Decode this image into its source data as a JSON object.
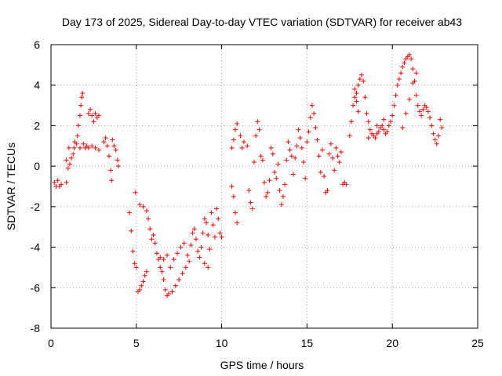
{
  "chart_data": {
    "type": "scatter",
    "title": "Day 173 of 2025, Sidereal Day-to-day VTEC variation (SDTVAR) for receiver ab43",
    "xlabel": "GPS time / hours",
    "ylabel": "SDTVAR / TECUs",
    "xlim": [
      0,
      25
    ],
    "ylim": [
      -8,
      6
    ],
    "xticks": [
      "0",
      "5",
      "10",
      "15",
      "20",
      "25"
    ],
    "yticks": [
      "-8",
      "-6",
      "-4",
      "-2",
      "0",
      "2",
      "4",
      "6"
    ],
    "grid": true,
    "marker": "+",
    "color": "#ff0000",
    "series": [
      {
        "name": "SDTVAR",
        "points": [
          [
            0.2,
            -0.8
          ],
          [
            0.3,
            -1.0
          ],
          [
            0.4,
            -0.7
          ],
          [
            0.5,
            -1.0
          ],
          [
            0.6,
            -0.9
          ],
          [
            0.9,
            -0.8
          ],
          [
            0.9,
            0.3
          ],
          [
            1.0,
            -0.1
          ],
          [
            1.05,
            0.9
          ],
          [
            1.1,
            0.1
          ],
          [
            1.2,
            0.4
          ],
          [
            1.3,
            0.6
          ],
          [
            1.35,
            0.9
          ],
          [
            1.4,
            1.2
          ],
          [
            1.5,
            1.1
          ],
          [
            1.55,
            1.5
          ],
          [
            1.6,
            2.0
          ],
          [
            1.7,
            2.5
          ],
          [
            1.75,
            3.0
          ],
          [
            1.8,
            3.4
          ],
          [
            1.85,
            3.6
          ],
          [
            1.7,
            0.9
          ],
          [
            1.9,
            1.1
          ],
          [
            2.0,
            0.9
          ],
          [
            2.1,
            1.0
          ],
          [
            2.2,
            0.9
          ],
          [
            2.2,
            2.6
          ],
          [
            2.3,
            2.8
          ],
          [
            2.4,
            2.5
          ],
          [
            2.5,
            2.2
          ],
          [
            2.6,
            2.6
          ],
          [
            2.7,
            2.4
          ],
          [
            2.8,
            2.5
          ],
          [
            2.4,
            1.0
          ],
          [
            2.6,
            0.9
          ],
          [
            2.8,
            0.8
          ],
          [
            3.1,
            1.2
          ],
          [
            3.2,
            1.4
          ],
          [
            3.3,
            1.0
          ],
          [
            3.4,
            0.5
          ],
          [
            3.5,
            -0.2
          ],
          [
            3.55,
            -0.7
          ],
          [
            3.6,
            1.3
          ],
          [
            3.7,
            1.0
          ],
          [
            3.8,
            0.8
          ],
          [
            3.9,
            0.3
          ],
          [
            3.95,
            0.0
          ],
          [
            4.6,
            -2.3
          ],
          [
            4.7,
            -3.2
          ],
          [
            4.8,
            -4.2
          ],
          [
            4.9,
            -4.8
          ],
          [
            5.0,
            -5.0
          ],
          [
            4.95,
            -1.3
          ],
          [
            5.1,
            -6.2
          ],
          [
            5.2,
            -6.1
          ],
          [
            5.3,
            -5.9
          ],
          [
            5.4,
            -5.7
          ],
          [
            5.5,
            -5.4
          ],
          [
            5.6,
            -5.2
          ],
          [
            5.2,
            -1.9
          ],
          [
            5.4,
            -2.0
          ],
          [
            5.6,
            -2.2
          ],
          [
            5.7,
            -2.6
          ],
          [
            5.8,
            -3.1
          ],
          [
            5.9,
            -3.6
          ],
          [
            6.0,
            -3.4
          ],
          [
            6.1,
            -3.8
          ],
          [
            6.2,
            -4.3
          ],
          [
            6.3,
            -4.6
          ],
          [
            6.4,
            -5.0
          ],
          [
            6.5,
            -5.2
          ],
          [
            6.6,
            -5.6
          ],
          [
            6.7,
            -6.1
          ],
          [
            6.8,
            -6.4
          ],
          [
            6.9,
            -6.3
          ],
          [
            6.4,
            -4.5
          ],
          [
            6.6,
            -4.6
          ],
          [
            6.8,
            -4.4
          ],
          [
            7.0,
            -5.0
          ],
          [
            7.2,
            -4.6
          ],
          [
            7.4,
            -4.3
          ],
          [
            7.6,
            -4.0
          ],
          [
            7.8,
            -3.8
          ],
          [
            7.1,
            -6.2
          ],
          [
            7.3,
            -5.9
          ],
          [
            7.5,
            -5.6
          ],
          [
            7.7,
            -5.3
          ],
          [
            7.9,
            -5.0
          ],
          [
            8.1,
            -4.7
          ],
          [
            8.0,
            -4.4
          ],
          [
            8.2,
            -3.9
          ],
          [
            8.3,
            -3.3
          ],
          [
            8.4,
            -3.1
          ],
          [
            8.5,
            -3.6
          ],
          [
            8.6,
            -4.2
          ],
          [
            8.7,
            -4.5
          ],
          [
            8.8,
            -4.0
          ],
          [
            8.9,
            -3.3
          ],
          [
            9.0,
            -2.6
          ],
          [
            9.1,
            -2.8
          ],
          [
            9.2,
            -3.4
          ],
          [
            9.3,
            -4.1
          ],
          [
            9.4,
            -2.3
          ],
          [
            9.5,
            -2.9
          ],
          [
            9.6,
            -3.5
          ],
          [
            9.7,
            -2.1
          ],
          [
            9.8,
            -2.6
          ],
          [
            9.9,
            -3.3
          ],
          [
            10.0,
            -3.5
          ],
          [
            9.2,
            -5.0
          ],
          [
            9.0,
            -4.8
          ],
          [
            10.6,
            -1.0
          ],
          [
            10.7,
            -1.5
          ],
          [
            10.8,
            -2.3
          ],
          [
            10.9,
            -2.8
          ],
          [
            10.6,
            0.9
          ],
          [
            10.7,
            1.3
          ],
          [
            10.8,
            1.8
          ],
          [
            10.9,
            2.1
          ],
          [
            11.1,
            1.5
          ],
          [
            11.2,
            0.9
          ],
          [
            11.3,
            1.2
          ],
          [
            11.5,
            1.0
          ],
          [
            11.6,
            -1.2
          ],
          [
            11.7,
            -1.8
          ],
          [
            11.8,
            -2.1
          ],
          [
            11.9,
            0.2
          ],
          [
            12.0,
            1.5
          ],
          [
            12.1,
            2.2
          ],
          [
            12.2,
            1.8
          ],
          [
            12.3,
            0.5
          ],
          [
            12.4,
            0.3
          ],
          [
            12.5,
            -0.8
          ],
          [
            12.6,
            -1.5
          ],
          [
            12.7,
            -1.3
          ],
          [
            12.8,
            -0.7
          ],
          [
            12.9,
            0.9
          ],
          [
            13.0,
            0.6
          ],
          [
            13.1,
            -0.3
          ],
          [
            13.2,
            -0.6
          ],
          [
            13.3,
            0.1
          ],
          [
            13.4,
            -1.2
          ],
          [
            13.5,
            -1.9
          ],
          [
            13.6,
            -1.5
          ],
          [
            13.7,
            -0.9
          ],
          [
            13.8,
            0.3
          ],
          [
            13.9,
            1.2
          ],
          [
            14.0,
            0.8
          ],
          [
            14.1,
            0.5
          ],
          [
            14.2,
            -0.4
          ],
          [
            14.3,
            0.4
          ],
          [
            14.4,
            1.0
          ],
          [
            14.5,
            1.8
          ],
          [
            14.6,
            1.4
          ],
          [
            14.7,
            0.9
          ],
          [
            14.8,
            0.2
          ],
          [
            14.9,
            -0.6
          ],
          [
            15.0,
            1.2
          ],
          [
            15.1,
            1.7
          ],
          [
            15.2,
            2.4
          ],
          [
            15.3,
            3.0
          ],
          [
            15.4,
            2.6
          ],
          [
            15.5,
            1.9
          ],
          [
            15.6,
            1.3
          ],
          [
            15.7,
            0.5
          ],
          [
            15.8,
            -0.3
          ],
          [
            15.9,
            0.8
          ],
          [
            16.0,
            -0.5
          ],
          [
            16.1,
            -1.3
          ],
          [
            16.2,
            -1.2
          ],
          [
            16.3,
            0.6
          ],
          [
            16.4,
            1.1
          ],
          [
            16.5,
            0.4
          ],
          [
            16.6,
            -0.2
          ],
          [
            16.7,
            0.9
          ],
          [
            16.8,
            0.5
          ],
          [
            16.9,
            0.2
          ],
          [
            17.0,
            0.7
          ],
          [
            17.1,
            -0.9
          ],
          [
            17.2,
            -0.8
          ],
          [
            17.3,
            -0.9
          ],
          [
            17.5,
            1.5
          ],
          [
            17.6,
            2.2
          ],
          [
            17.7,
            3.0
          ],
          [
            17.8,
            3.4
          ],
          [
            17.9,
            3.6
          ],
          [
            18.0,
            4.0
          ],
          [
            18.1,
            4.3
          ],
          [
            18.2,
            4.5
          ],
          [
            18.3,
            4.2
          ],
          [
            18.4,
            3.4
          ],
          [
            18.5,
            2.6
          ],
          [
            18.6,
            2.2
          ],
          [
            18.7,
            1.8
          ],
          [
            18.8,
            1.6
          ],
          [
            18.9,
            1.5
          ],
          [
            19.0,
            1.4
          ],
          [
            19.1,
            1.6
          ],
          [
            19.2,
            1.7
          ],
          [
            19.3,
            1.9
          ],
          [
            19.4,
            2.0
          ],
          [
            19.5,
            1.8
          ],
          [
            19.6,
            1.6
          ],
          [
            19.7,
            1.7
          ],
          [
            19.8,
            2.0
          ],
          [
            19.9,
            2.2
          ],
          [
            20.0,
            2.5
          ],
          [
            20.1,
            3.0
          ],
          [
            20.2,
            3.5
          ],
          [
            20.3,
            4.0
          ],
          [
            20.4,
            4.3
          ],
          [
            20.5,
            4.6
          ],
          [
            20.6,
            4.9
          ],
          [
            20.7,
            5.1
          ],
          [
            20.8,
            5.3
          ],
          [
            20.9,
            5.4
          ],
          [
            21.0,
            5.5
          ],
          [
            21.1,
            5.3
          ],
          [
            21.2,
            4.8
          ],
          [
            21.3,
            4.2
          ],
          [
            21.4,
            3.5
          ],
          [
            21.5,
            3.0
          ],
          [
            21.6,
            2.7
          ],
          [
            21.7,
            2.5
          ],
          [
            21.8,
            2.8
          ],
          [
            21.9,
            3.0
          ],
          [
            22.0,
            2.9
          ],
          [
            22.1,
            2.7
          ],
          [
            22.2,
            2.4
          ],
          [
            22.3,
            2.0
          ],
          [
            22.4,
            1.6
          ],
          [
            22.5,
            1.3
          ],
          [
            22.6,
            1.1
          ],
          [
            22.7,
            1.5
          ],
          [
            22.8,
            2.3
          ],
          [
            22.9,
            1.9
          ],
          [
            20.6,
            1.9
          ],
          [
            20.8,
            2.6
          ],
          [
            21.0,
            3.3
          ],
          [
            21.2,
            4.1
          ],
          [
            21.4,
            4.6
          ],
          [
            17.8,
            3.8
          ],
          [
            17.9,
            3.2
          ],
          [
            18.0,
            2.7
          ],
          [
            18.6,
            1.4
          ],
          [
            19.1,
            2.0
          ],
          [
            19.5,
            2.3
          ]
        ]
      }
    ]
  }
}
